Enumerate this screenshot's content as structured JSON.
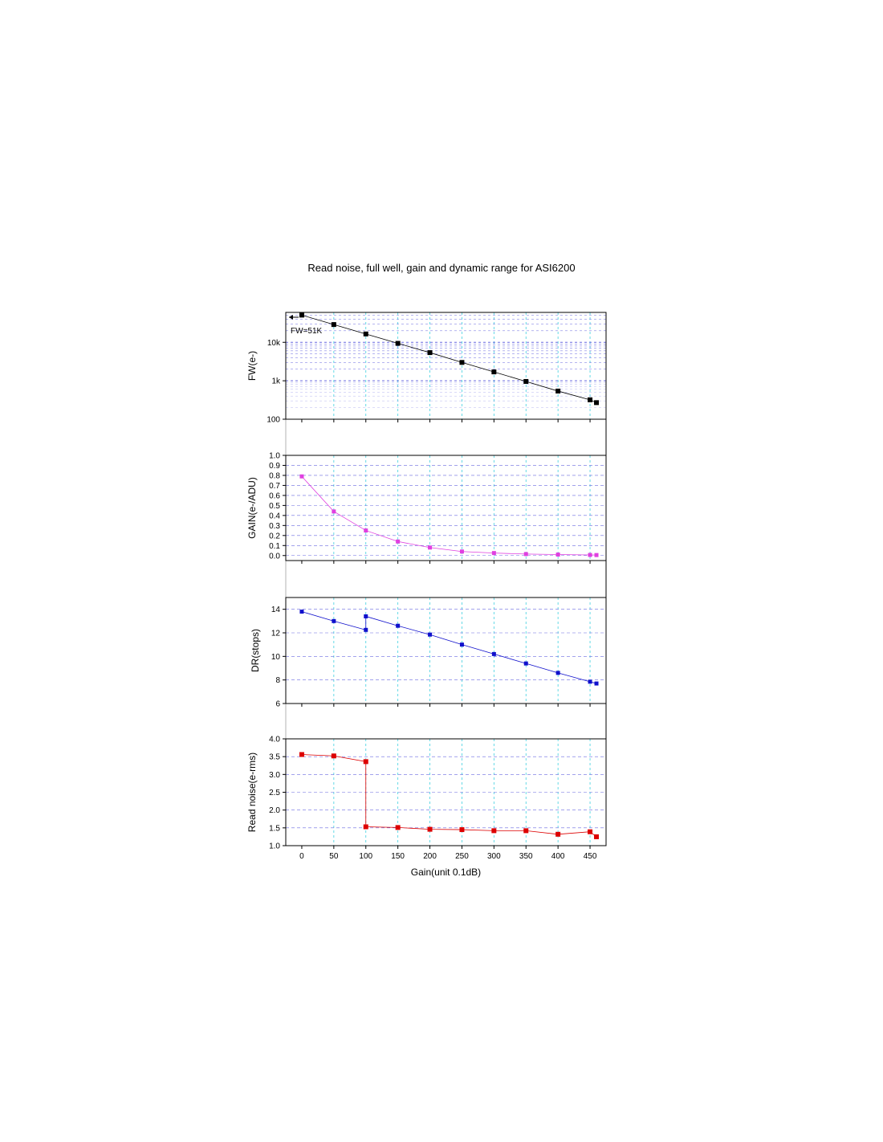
{
  "title": "Read noise, full well, gain and dynamic range for ASI6200",
  "colors": {
    "fw": "#000000",
    "gain": "#e040e0",
    "dr": "#1010cc",
    "rn": "#dd0000",
    "grid_h": "#6a6ae0",
    "grid_v": "#40d0e0"
  },
  "chart_data": [
    {
      "id": "fw",
      "type": "scatter",
      "ylabel": "FW(e-)",
      "yscale": "log",
      "ylim": [
        100,
        60000
      ],
      "yticks": [
        100,
        1000,
        10000
      ],
      "yticklabels": [
        "100",
        "1k",
        "10k"
      ],
      "annotation": "FW=51K",
      "x": [
        0,
        50,
        100,
        150,
        200,
        250,
        300,
        350,
        400,
        450,
        460
      ],
      "y": [
        51000,
        29000,
        16500,
        9400,
        5400,
        3000,
        1700,
        960,
        540,
        320,
        270
      ]
    },
    {
      "id": "gain",
      "type": "scatter",
      "ylabel": "GAIN(e-/ADU)",
      "ylim": [
        -0.05,
        1.0
      ],
      "yticks": [
        0.0,
        0.1,
        0.2,
        0.3,
        0.4,
        0.5,
        0.6,
        0.7,
        0.8,
        0.9,
        1.0
      ],
      "yticklabels": [
        "0.0",
        "0.1",
        "0.2",
        "0.3",
        "0.4",
        "0.5",
        "0.6",
        "0.7",
        "0.8",
        "0.9",
        "1.0"
      ],
      "x": [
        0,
        50,
        100,
        150,
        200,
        250,
        300,
        350,
        400,
        450,
        460
      ],
      "y": [
        0.79,
        0.44,
        0.25,
        0.14,
        0.08,
        0.04,
        0.025,
        0.015,
        0.01,
        0.006,
        0.005
      ]
    },
    {
      "id": "dr",
      "type": "scatter",
      "ylabel": "DR(stops)",
      "ylim": [
        6,
        15
      ],
      "yticks": [
        6,
        8,
        10,
        12,
        14
      ],
      "yticklabels": [
        "6",
        "8",
        "10",
        "12",
        "14"
      ],
      "x": [
        0,
        50,
        100,
        100,
        150,
        200,
        250,
        300,
        350,
        400,
        450,
        460
      ],
      "y": [
        13.8,
        13.0,
        12.25,
        13.4,
        12.6,
        11.85,
        11.0,
        10.2,
        9.4,
        8.6,
        7.85,
        7.7
      ]
    },
    {
      "id": "rn",
      "type": "scatter",
      "ylabel": "Read noise(e-rms)",
      "ylim": [
        1.0,
        4.0
      ],
      "yticks": [
        1.0,
        1.5,
        2.0,
        2.5,
        3.0,
        3.5,
        4.0
      ],
      "yticklabels": [
        "1.0",
        "1.5",
        "2.0",
        "2.5",
        "3.0",
        "3.5",
        "4.0"
      ],
      "x": [
        0,
        50,
        100,
        100,
        150,
        200,
        250,
        300,
        350,
        400,
        450,
        460
      ],
      "y": [
        3.56,
        3.52,
        3.36,
        1.53,
        1.51,
        1.46,
        1.45,
        1.42,
        1.42,
        1.32,
        1.39,
        1.25
      ]
    }
  ],
  "xaxis": {
    "label": "Gain(unit 0.1dB)",
    "xlim": [
      -25,
      475
    ],
    "ticks": [
      0,
      50,
      100,
      150,
      200,
      250,
      300,
      350,
      400,
      450
    ],
    "ticklabels": [
      "0",
      "50",
      "100",
      "150",
      "200",
      "250",
      "300",
      "350",
      "400",
      "450"
    ]
  }
}
